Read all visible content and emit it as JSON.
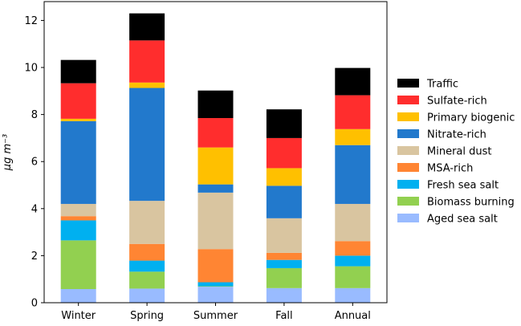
{
  "chart_data": {
    "type": "bar",
    "stacked": true,
    "categories": [
      "Winter",
      "Spring",
      "Summer",
      "Fall",
      "Annual"
    ],
    "ylabel": "μg m⁻³",
    "ylim": [
      0,
      12.8
    ],
    "yticks": [
      "0",
      "2",
      "4",
      "6",
      "8",
      "10",
      "12"
    ],
    "grid": false,
    "legend_position": "right",
    "series": [
      {
        "name": "Aged sea salt",
        "color": "#99bbff",
        "values": [
          0.58,
          0.6,
          0.68,
          0.62,
          0.62
        ]
      },
      {
        "name": "Biomass burning",
        "color": "#92d050",
        "values": [
          2.07,
          0.72,
          0.02,
          0.85,
          0.93
        ]
      },
      {
        "name": "Fresh sea salt",
        "color": "#00b0f0",
        "values": [
          0.85,
          0.47,
          0.17,
          0.35,
          0.45
        ]
      },
      {
        "name": "MSA-rich",
        "color": "#ff8533",
        "values": [
          0.18,
          0.71,
          1.41,
          0.3,
          0.62
        ]
      },
      {
        "name": "Mineral dust",
        "color": "#d9c5a0",
        "values": [
          0.52,
          1.83,
          2.4,
          1.47,
          1.58
        ]
      },
      {
        "name": "Nitrate-rich",
        "color": "#2279cc",
        "values": [
          3.52,
          4.8,
          0.35,
          1.38,
          2.5
        ]
      },
      {
        "name": "Primary biogenic",
        "color": "#ffc000",
        "values": [
          0.1,
          0.23,
          1.57,
          0.75,
          0.68
        ]
      },
      {
        "name": "Sulfate-rich",
        "color": "#ff2d2d",
        "values": [
          1.51,
          1.79,
          1.25,
          1.28,
          1.44
        ]
      },
      {
        "name": "Traffic",
        "color": "#000000",
        "values": [
          0.99,
          1.15,
          1.17,
          1.22,
          1.16
        ]
      }
    ]
  }
}
